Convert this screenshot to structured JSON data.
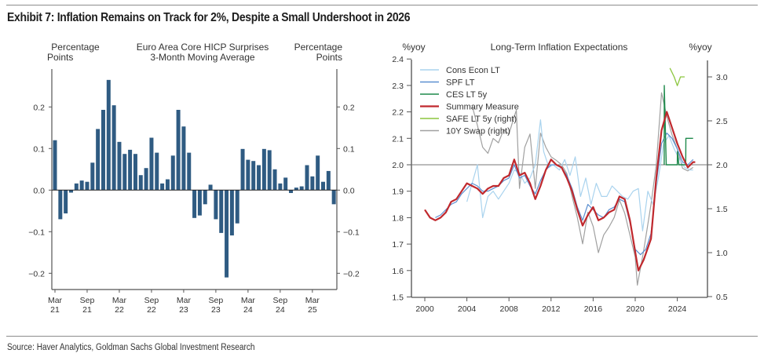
{
  "exhibit": {
    "title": "Exhibit 7: Inflation Remains on Track for 2%, Despite a Small Undershoot in 2026",
    "source": "Source: Haver Analytics, Goldman Sachs Global Investment Research"
  },
  "chart_data": [
    {
      "type": "bar",
      "title": "Euro Area Core HICP Surprises",
      "subtitle": "3-Month Moving Average",
      "ylabel_left": [
        "Percentage",
        "Points"
      ],
      "ylabel_right": [
        "Percentage",
        "Points"
      ],
      "ylim": [
        -0.24,
        0.3
      ],
      "yticks": [
        -0.2,
        -0.1,
        0.0,
        0.1,
        0.2
      ],
      "ytick_labels": [
        "−0.2",
        "−0.1",
        "0.0",
        "0.1",
        "0.2"
      ],
      "xtick_labels": [
        [
          "Mar",
          "21"
        ],
        [
          "Sep",
          "21"
        ],
        [
          "Mar",
          "22"
        ],
        [
          "Sep",
          "22"
        ],
        [
          "Mar",
          "23"
        ],
        [
          "Sep",
          "23"
        ],
        [
          "Mar",
          "24"
        ],
        [
          "Sep",
          "24"
        ],
        [
          "Mar",
          "25"
        ]
      ],
      "xtick_month_index": [
        0,
        6,
        12,
        18,
        24,
        30,
        36,
        42,
        48
      ],
      "start_month": "Mar 2021",
      "end_month": "Jul 2025",
      "bar_color": "#2f5b82",
      "values": [
        0.12,
        -0.07,
        -0.056,
        -0.006,
        0.016,
        0.023,
        0.02,
        0.066,
        0.147,
        0.193,
        0.265,
        0.204,
        0.116,
        0.087,
        0.097,
        0.087,
        0.036,
        0.053,
        0.126,
        0.09,
        0.016,
        0.026,
        0.083,
        0.193,
        0.153,
        0.09,
        -0.067,
        -0.061,
        -0.034,
        0.013,
        -0.07,
        -0.103,
        -0.21,
        -0.109,
        -0.08,
        0.099,
        0.073,
        0.07,
        0.06,
        0.099,
        0.096,
        0.05,
        0.016,
        0.03,
        -0.007,
        0.006,
        0.009,
        0.06,
        0.033,
        0.083,
        0.02,
        0.046,
        -0.034
      ]
    },
    {
      "type": "line",
      "title": "Long-Term Inflation Expectations",
      "ylabel_left": "%yoy",
      "ylabel_right": "%yoy",
      "ylim_left": [
        1.5,
        2.4
      ],
      "ylim_right": [
        0.5,
        3.25
      ],
      "yticks_left": [
        "1.5",
        "1.6",
        "1.7",
        "1.8",
        "1.9",
        "2.0",
        "2.1",
        "2.2",
        "2.3",
        "2.4"
      ],
      "yticks_right": [
        "0.5",
        "1.0",
        "1.5",
        "2.0",
        "2.5",
        "3.0"
      ],
      "xlim": [
        1999,
        2026.5
      ],
      "xticks": [
        "2000",
        "2004",
        "2008",
        "2012",
        "2016",
        "2020",
        "2024"
      ],
      "reference_line": 2.0,
      "legend_position": "top-left",
      "series": [
        {
          "name": "Cons Econ LT",
          "axis": "left",
          "color": "#a9d3ee",
          "x": [
            2004.0,
            2004.5,
            2005.0,
            2005.5,
            2006.0,
            2006.5,
            2007.0,
            2007.5,
            2008.0,
            2008.5,
            2009.0,
            2009.5,
            2010.0,
            2010.5,
            2011.0,
            2011.3,
            2011.8,
            2012.2,
            2012.8,
            2013.3,
            2013.8,
            2014.3,
            2014.8,
            2015.3,
            2015.8,
            2016.3,
            2016.8,
            2017.3,
            2017.8,
            2018.3,
            2018.8,
            2019.3,
            2019.8,
            2020.3,
            2020.7,
            2021.2,
            2021.7,
            2022.2,
            2022.7,
            2023.2,
            2023.7,
            2024.2,
            2024.7,
            2025.2,
            2025.5
          ],
          "values": [
            1.86,
            1.93,
            2.0,
            1.8,
            1.88,
            1.9,
            1.87,
            1.9,
            1.93,
            1.98,
            1.97,
            1.93,
            1.95,
            2.0,
            2.17,
            2.05,
            1.99,
            2.0,
            1.98,
            2.02,
            1.96,
            2.03,
            1.88,
            1.95,
            1.85,
            1.93,
            1.88,
            1.88,
            1.92,
            1.9,
            1.88,
            1.87,
            1.9,
            1.91,
            1.75,
            1.9,
            1.85,
            1.95,
            2.08,
            2.11,
            2.06,
            2.02,
            1.99,
            1.98,
            1.98
          ]
        },
        {
          "name": "SPF LT",
          "axis": "left",
          "color": "#5b8fd0",
          "x": [
            2001.0,
            2001.5,
            2002.0,
            2002.5,
            2003.0,
            2003.5,
            2004.0,
            2004.5,
            2005.0,
            2005.5,
            2006.0,
            2006.5,
            2007.0,
            2007.5,
            2008.0,
            2008.5,
            2009.0,
            2009.5,
            2010.0,
            2010.5,
            2011.0,
            2011.5,
            2012.0,
            2012.5,
            2013.0,
            2013.5,
            2014.0,
            2014.5,
            2015.0,
            2015.5,
            2016.0,
            2016.5,
            2017.0,
            2017.5,
            2018.0,
            2018.5,
            2019.0,
            2019.5,
            2020.0,
            2020.5,
            2021.0,
            2021.5,
            2022.0,
            2022.5,
            2023.0,
            2023.5,
            2024.0,
            2024.5,
            2025.0,
            2025.5
          ],
          "values": [
            1.8,
            1.81,
            1.83,
            1.85,
            1.86,
            1.89,
            1.91,
            1.93,
            1.92,
            1.9,
            1.9,
            1.91,
            1.92,
            1.94,
            1.95,
            2.0,
            1.95,
            1.96,
            1.92,
            1.89,
            1.94,
            1.98,
            2.0,
            2.0,
            1.99,
            1.96,
            1.91,
            1.84,
            1.79,
            1.85,
            1.83,
            1.81,
            1.8,
            1.83,
            1.84,
            1.87,
            1.86,
            1.78,
            1.68,
            1.66,
            1.68,
            1.74,
            1.93,
            2.08,
            2.12,
            2.1,
            2.06,
            2.01,
            2.0,
            2.02
          ]
        },
        {
          "name": "CES LT 5y",
          "axis": "left",
          "color": "#1f8a4c",
          "x": [
            2022.75,
            2022.76,
            2022.95,
            2024.0,
            2024.01,
            2024.15,
            2024.8,
            2024.81,
            2025.5
          ],
          "values": [
            2.0,
            2.3,
            2.0,
            2.0,
            2.05,
            2.0,
            2.0,
            2.1,
            2.1
          ]
        },
        {
          "name": "Summary Measure",
          "axis": "left",
          "color": "#c0282d",
          "x": [
            2000.0,
            2000.5,
            2001.0,
            2001.5,
            2002.0,
            2002.5,
            2003.0,
            2003.5,
            2004.0,
            2004.5,
            2005.0,
            2005.5,
            2006.0,
            2006.5,
            2007.0,
            2007.5,
            2008.0,
            2008.5,
            2009.0,
            2009.5,
            2010.0,
            2010.5,
            2011.0,
            2011.5,
            2012.0,
            2012.5,
            2013.0,
            2013.5,
            2014.0,
            2014.5,
            2015.0,
            2015.5,
            2016.0,
            2016.5,
            2017.0,
            2017.5,
            2018.0,
            2018.5,
            2019.0,
            2019.5,
            2020.0,
            2020.3,
            2020.8,
            2021.5,
            2022.0,
            2022.5,
            2023.0,
            2023.5,
            2024.0,
            2024.5,
            2025.0,
            2025.5,
            2025.7
          ],
          "values": [
            1.83,
            1.8,
            1.79,
            1.8,
            1.82,
            1.86,
            1.87,
            1.9,
            1.93,
            1.92,
            1.91,
            1.89,
            1.91,
            1.92,
            1.92,
            1.95,
            1.96,
            2.02,
            1.96,
            1.97,
            1.93,
            1.87,
            1.92,
            1.98,
            2.02,
            2.0,
            1.99,
            1.95,
            1.9,
            1.83,
            1.77,
            1.81,
            1.84,
            1.79,
            1.8,
            1.82,
            1.83,
            1.88,
            1.87,
            1.79,
            1.67,
            1.6,
            1.64,
            1.72,
            1.95,
            2.13,
            2.2,
            2.14,
            2.08,
            2.03,
            1.99,
            2.01,
            2.01
          ]
        },
        {
          "name": "SAFE LT 5y (right)",
          "axis": "right",
          "color": "#8cc63f",
          "x": [
            2023.3,
            2023.7,
            2024.0,
            2024.3,
            2024.7
          ],
          "values": [
            3.1,
            3.0,
            2.9,
            3.0,
            3.0
          ]
        },
        {
          "name": "10Y Swap (right)",
          "axis": "right",
          "color": "#a0a0a0",
          "x": [
            2004.5,
            2005.0,
            2005.5,
            2006.0,
            2006.5,
            2007.0,
            2007.5,
            2008.0,
            2008.5,
            2008.7,
            2009.0,
            2009.5,
            2010.0,
            2010.5,
            2011.0,
            2011.5,
            2012.0,
            2012.5,
            2013.0,
            2013.5,
            2014.0,
            2014.5,
            2015.0,
            2015.5,
            2016.0,
            2016.5,
            2017.0,
            2017.5,
            2018.0,
            2018.5,
            2019.0,
            2019.5,
            2020.0,
            2020.2,
            2020.8,
            2021.5,
            2022.0,
            2022.5,
            2023.0,
            2023.5,
            2024.0,
            2024.5,
            2025.0,
            2025.5
          ],
          "values": [
            2.67,
            2.45,
            2.2,
            2.13,
            2.3,
            2.25,
            2.4,
            2.35,
            2.55,
            2.62,
            1.73,
            2.2,
            2.35,
            1.73,
            2.36,
            2.2,
            2.09,
            2.05,
            2.0,
            1.9,
            1.64,
            1.4,
            1.1,
            1.46,
            1.3,
            1.0,
            1.2,
            1.29,
            1.4,
            1.6,
            1.45,
            1.2,
            0.95,
            0.63,
            1.02,
            1.55,
            2.0,
            2.82,
            2.55,
            2.34,
            2.18,
            1.96,
            1.93,
            1.97
          ]
        }
      ]
    }
  ]
}
